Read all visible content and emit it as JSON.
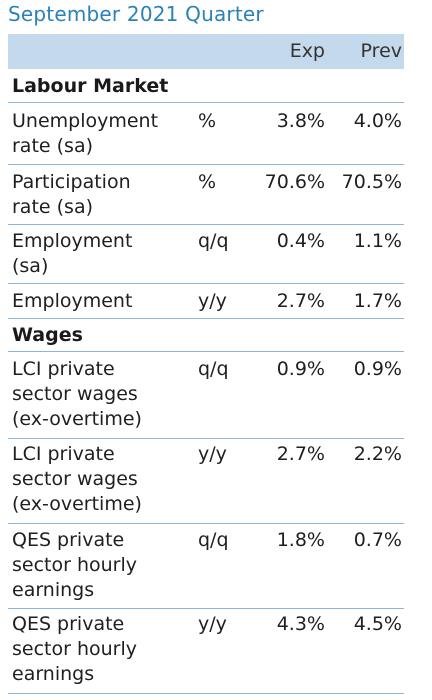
{
  "title": "September 2021 Quarter",
  "columns": {
    "exp": "Exp",
    "prev": "Prev"
  },
  "sections": [
    {
      "name": "Labour Market",
      "rows": [
        {
          "label": "Unemployment\nrate (sa)",
          "unit": "%",
          "exp": "3.8%",
          "prev": "4.0%"
        },
        {
          "label": "Participation\nrate (sa)",
          "unit": "%",
          "exp": "70.6%",
          "prev": "70.5%"
        },
        {
          "label": "Employment\n(sa)",
          "unit": "q/q",
          "exp": "0.4%",
          "prev": "1.1%"
        },
        {
          "label": "Employment",
          "unit": "y/y",
          "exp": "2.7%",
          "prev": "1.7%"
        }
      ]
    },
    {
      "name": "Wages",
      "rows": [
        {
          "label": "LCI private\nsector wages\n(ex-overtime)",
          "unit": "q/q",
          "exp": "0.9%",
          "prev": "0.9%"
        },
        {
          "label": "LCI private\nsector wages\n(ex-overtime)",
          "unit": "y/y",
          "exp": "2.7%",
          "prev": "2.2%"
        },
        {
          "label": "QES private\nsector hourly\nearnings",
          "unit": "q/q",
          "exp": "1.8%",
          "prev": "0.7%"
        },
        {
          "label": "QES private\nsector hourly\nearnings",
          "unit": "y/y",
          "exp": "4.3%",
          "prev": "4.5%"
        }
      ]
    }
  ]
}
